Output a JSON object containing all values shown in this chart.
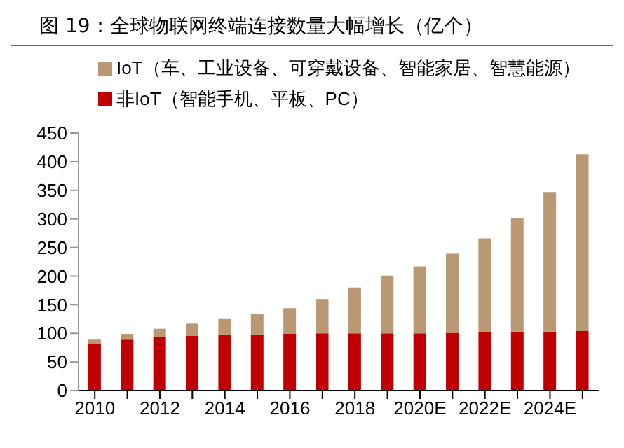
{
  "chart_data": {
    "type": "bar",
    "title": "图 19：全球物联网终端连接数量大幅增长（亿个）",
    "stacked": true,
    "legend": "top left",
    "grid": false,
    "categories": [
      "2010",
      null,
      "2012",
      null,
      "2014",
      null,
      "2016",
      null,
      "2018",
      null,
      "2020E",
      null,
      "2022E",
      null,
      "2024E",
      null
    ],
    "series": [
      {
        "name": "非IoT（智能手机、平板、PC）",
        "color": "#c00000",
        "values": [
          81,
          89,
          94,
          96,
          98,
          98,
          99,
          100,
          100,
          100,
          100,
          101,
          102,
          103,
          103,
          104
        ]
      },
      {
        "name": "IoT（车、工业设备、可穿戴设备、智能家居、智慧能源）",
        "color": "#b99873",
        "values": [
          8,
          10,
          14,
          21,
          27,
          36,
          45,
          60,
          80,
          101,
          117,
          138,
          164,
          198,
          244,
          309
        ]
      }
    ],
    "ylim": [
      0,
      450
    ],
    "yticks": [
      0,
      50,
      100,
      150,
      200,
      250,
      300,
      350,
      400,
      450
    ]
  }
}
